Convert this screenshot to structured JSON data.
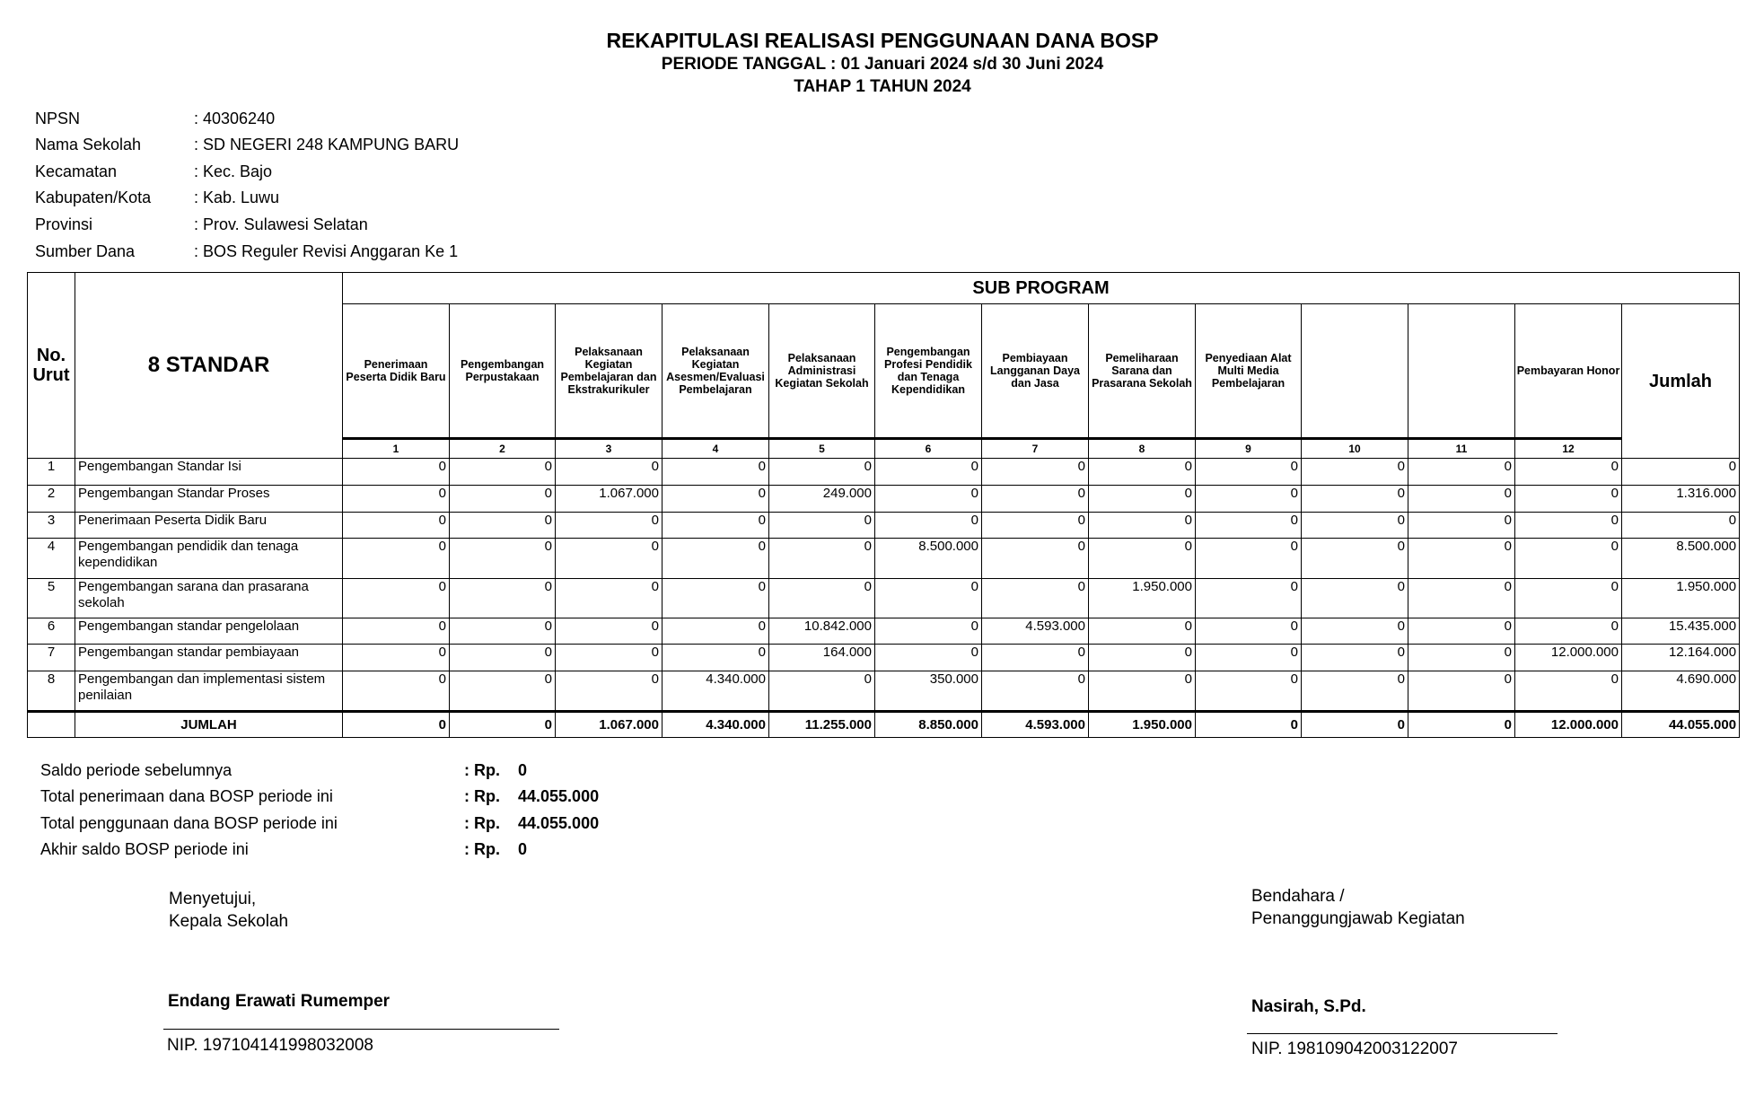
{
  "header": {
    "title": "REKAPITULASI REALISASI PENGGUNAAN DANA BOSP",
    "periode": "PERIODE TANGGAL : 01 Januari 2024 s/d 30 Juni 2024",
    "tahap": "TAHAP 1 TAHUN 2024"
  },
  "info": [
    {
      "label": "NPSN",
      "value": ": 40306240"
    },
    {
      "label": "Nama Sekolah",
      "value": ": SD NEGERI 248 KAMPUNG BARU"
    },
    {
      "label": "Kecamatan",
      "value": ": Kec. Bajo"
    },
    {
      "label": "Kabupaten/Kota",
      "value": ": Kab. Luwu"
    },
    {
      "label": "Provinsi",
      "value": ": Prov. Sulawesi Selatan"
    },
    {
      "label": "Sumber Dana",
      "value": ": BOS Reguler Revisi Anggaran Ke 1"
    }
  ],
  "table": {
    "no_header": "No. Urut",
    "standar_header": "8 STANDAR",
    "subprogram_header": "SUB PROGRAM",
    "jumlah_header": "Jumlah",
    "columns": [
      {
        "label": "Penerimaan Peserta Didik Baru",
        "num": "1"
      },
      {
        "label": "Pengembangan Perpustakaan",
        "num": "2"
      },
      {
        "label": "Pelaksanaan Kegiatan Pembelajaran dan Ekstrakurikuler",
        "num": "3"
      },
      {
        "label": "Pelaksanaan Kegiatan Asesmen/Evaluasi Pembelajaran",
        "num": "4"
      },
      {
        "label": "Pelaksanaan Administrasi Kegiatan Sekolah",
        "num": "5"
      },
      {
        "label": "Pengembangan Profesi Pendidik dan Tenaga Kependidikan",
        "num": "6"
      },
      {
        "label": "Pembiayaan Langganan Daya dan Jasa",
        "num": "7"
      },
      {
        "label": "Pemeliharaan Sarana dan Prasarana Sekolah",
        "num": "8"
      },
      {
        "label": "Penyediaan Alat Multi Media Pembelajaran",
        "num": "9"
      },
      {
        "label": "",
        "num": "10"
      },
      {
        "label": "",
        "num": "11"
      },
      {
        "label": "Pembayaran Honor",
        "num": "12"
      }
    ],
    "rows": [
      {
        "no": "1",
        "standar": "Pengembangan Standar Isi",
        "values": [
          "0",
          "0",
          "0",
          "0",
          "0",
          "0",
          "0",
          "0",
          "0",
          "0",
          "0",
          "0"
        ],
        "jumlah": "0"
      },
      {
        "no": "2",
        "standar": "Pengembangan Standar Proses",
        "values": [
          "0",
          "0",
          "1.067.000",
          "0",
          "249.000",
          "0",
          "0",
          "0",
          "0",
          "0",
          "0",
          "0"
        ],
        "jumlah": "1.316.000"
      },
      {
        "no": "3",
        "standar": "Penerimaan Peserta Didik Baru",
        "values": [
          "0",
          "0",
          "0",
          "0",
          "0",
          "0",
          "0",
          "0",
          "0",
          "0",
          "0",
          "0"
        ],
        "jumlah": "0"
      },
      {
        "no": "4",
        "standar": "Pengembangan pendidik dan tenaga kependidikan",
        "values": [
          "0",
          "0",
          "0",
          "0",
          "0",
          "8.500.000",
          "0",
          "0",
          "0",
          "0",
          "0",
          "0"
        ],
        "jumlah": "8.500.000"
      },
      {
        "no": "5",
        "standar": "Pengembangan sarana dan prasarana sekolah",
        "values": [
          "0",
          "0",
          "0",
          "0",
          "0",
          "0",
          "0",
          "1.950.000",
          "0",
          "0",
          "0",
          "0"
        ],
        "jumlah": "1.950.000"
      },
      {
        "no": "6",
        "standar": "Pengembangan standar pengelolaan",
        "values": [
          "0",
          "0",
          "0",
          "0",
          "10.842.000",
          "0",
          "4.593.000",
          "0",
          "0",
          "0",
          "0",
          "0"
        ],
        "jumlah": "15.435.000"
      },
      {
        "no": "7",
        "standar": "Pengembangan standar pembiayaan",
        "values": [
          "0",
          "0",
          "0",
          "0",
          "164.000",
          "0",
          "0",
          "0",
          "0",
          "0",
          "0",
          "12.000.000"
        ],
        "jumlah": "12.164.000"
      },
      {
        "no": "8",
        "standar": "Pengembangan dan implementasi sistem penilaian",
        "values": [
          "0",
          "0",
          "0",
          "4.340.000",
          "0",
          "350.000",
          "0",
          "0",
          "0",
          "0",
          "0",
          "0"
        ],
        "jumlah": "4.690.000"
      }
    ],
    "total": {
      "label": "JUMLAH",
      "values": [
        "0",
        "0",
        "1.067.000",
        "4.340.000",
        "11.255.000",
        "8.850.000",
        "4.593.000",
        "1.950.000",
        "0",
        "0",
        "0",
        "12.000.000"
      ],
      "jumlah": "44.055.000"
    }
  },
  "summary": [
    {
      "label": "Saldo periode sebelumnya",
      "prefix": ": Rp.",
      "value": "0"
    },
    {
      "label": "Total penerimaan dana BOSP periode ini",
      "prefix": ": Rp.",
      "value": "44.055.000"
    },
    {
      "label": "Total penggunaan dana BOSP periode ini",
      "prefix": ": Rp.",
      "value": "44.055.000"
    },
    {
      "label": "Akhir saldo BOSP periode ini",
      "prefix": ": Rp.",
      "value": "0"
    }
  ],
  "signatures": {
    "left": {
      "line1": "Menyetujui,",
      "line2": "Kepala Sekolah",
      "name": "Endang Erawati Rumemper",
      "nip": "NIP. 197104141998032008"
    },
    "right": {
      "line1": "Bendahara /",
      "line2": "Penanggungjawab Kegiatan",
      "name": "Nasirah, S.Pd.",
      "nip": "NIP. 198109042003122007"
    }
  }
}
